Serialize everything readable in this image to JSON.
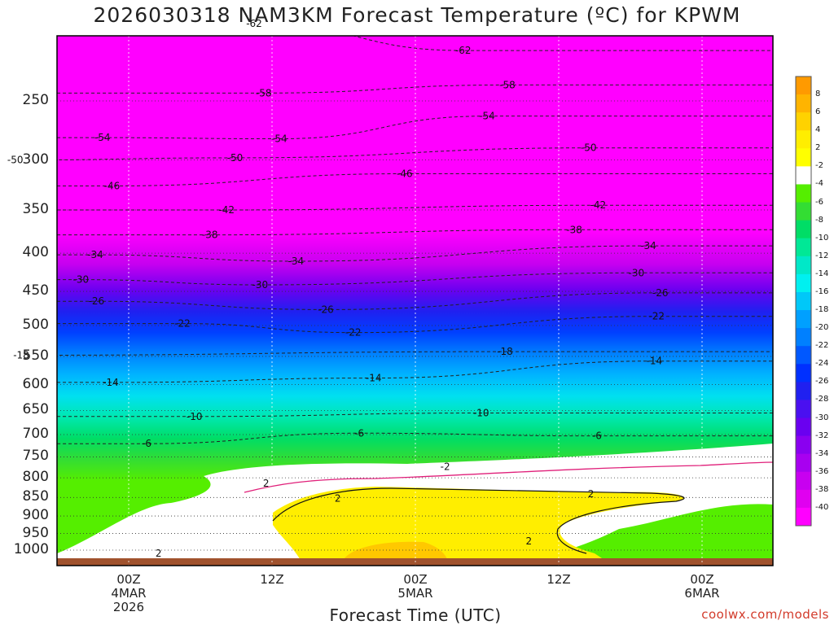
{
  "title": "2026030318 NAM3KM Forecast Temperature (ºC) for KPWM",
  "x_axis_title": "Forecast Time (UTC)",
  "credit": "coolwx.com/models",
  "chart_data": {
    "type": "heatmap",
    "title": "2026030318 NAM3KM Forecast Temperature (ºC) for KPWM",
    "xlabel": "Forecast Time (UTC)",
    "ylabel": "",
    "y_scale": "log-pressure, inverted",
    "y_ticks": [
      "250",
      "300",
      "350",
      "400",
      "450",
      "500",
      "550",
      "600",
      "650",
      "700",
      "750",
      "800",
      "850",
      "900",
      "950",
      "1000"
    ],
    "x_ticks": [
      {
        "label": "00Z",
        "sub1": "4MAR",
        "sub2": "2026"
      },
      {
        "label": "12Z",
        "sub1": "",
        "sub2": ""
      },
      {
        "label": "00Z",
        "sub1": "5MAR",
        "sub2": ""
      },
      {
        "label": "12Z",
        "sub1": "",
        "sub2": ""
      },
      {
        "label": "00Z",
        "sub1": "6MAR",
        "sub2": ""
      }
    ],
    "colorbar_labels": [
      "8",
      "6",
      "4",
      "2",
      "-2",
      "-4",
      "-6",
      "-8",
      "-10",
      "-12",
      "-14",
      "-16",
      "-18",
      "-20",
      "-22",
      "-24",
      "-26",
      "-28",
      "-30",
      "-32",
      "-34",
      "-36",
      "-38",
      "-40"
    ],
    "colorbar_colors": [
      "#ff9a00",
      "#ffb400",
      "#ffd200",
      "#ffee00",
      "#ffff00",
      "#ffffff",
      "#55ee00",
      "#33dd33",
      "#00dd66",
      "#00e896",
      "#00e8c8",
      "#00f0f0",
      "#00c8f8",
      "#00a0ff",
      "#0080ff",
      "#0058ff",
      "#0030ff",
      "#2020f0",
      "#4a10f0",
      "#6a00f0",
      "#8a00f0",
      "#a800f0",
      "#c800f0",
      "#e000f0",
      "#ff00ff"
    ],
    "contour_labels": [
      {
        "text": "-62",
        "t": 10.5,
        "p": 197
      },
      {
        "text": "-62",
        "t": 28,
        "p": 214
      },
      {
        "text": "-58",
        "t": 11.3,
        "p": 244
      },
      {
        "text": "-58",
        "t": 31.7,
        "p": 238
      },
      {
        "text": "-54",
        "t": -2.2,
        "p": 280
      },
      {
        "text": "-54",
        "t": 12.6,
        "p": 281
      },
      {
        "text": "-54",
        "t": 30,
        "p": 262
      },
      {
        "text": "-50",
        "t": -9.5,
        "p": 300
      },
      {
        "text": "-50",
        "t": 8.9,
        "p": 298
      },
      {
        "text": "-50",
        "t": 38.5,
        "p": 289
      },
      {
        "text": "-46",
        "t": -1.4,
        "p": 325
      },
      {
        "text": "-46",
        "t": 23.1,
        "p": 313
      },
      {
        "text": "-42",
        "t": 8.2,
        "p": 350
      },
      {
        "text": "-42",
        "t": 39.3,
        "p": 345
      },
      {
        "text": "-38",
        "t": 6.8,
        "p": 378
      },
      {
        "text": "-38",
        "t": 37.3,
        "p": 372
      },
      {
        "text": "-34",
        "t": -2.8,
        "p": 402
      },
      {
        "text": "-34",
        "t": 14,
        "p": 410
      },
      {
        "text": "-34",
        "t": 43.5,
        "p": 391
      },
      {
        "text": "-30",
        "t": -4,
        "p": 434
      },
      {
        "text": "-30",
        "t": 11,
        "p": 441
      },
      {
        "text": "-30",
        "t": 42.5,
        "p": 425
      },
      {
        "text": "-26",
        "t": -2.7,
        "p": 464
      },
      {
        "text": "-26",
        "t": 16.5,
        "p": 476
      },
      {
        "text": "-26",
        "t": 44.5,
        "p": 452
      },
      {
        "text": "-22",
        "t": 4.5,
        "p": 497
      },
      {
        "text": "-22",
        "t": 18.8,
        "p": 511
      },
      {
        "text": "-22",
        "t": 44.2,
        "p": 486
      },
      {
        "text": "-18",
        "t": -9,
        "p": 548
      },
      {
        "text": "-18",
        "t": 31.5,
        "p": 542
      },
      {
        "text": "-14",
        "t": -1.5,
        "p": 596
      },
      {
        "text": "-14",
        "t": 20.5,
        "p": 588
      },
      {
        "text": "-14",
        "t": 44,
        "p": 558
      },
      {
        "text": "-10",
        "t": 5.5,
        "p": 662
      },
      {
        "text": "-10",
        "t": 29.5,
        "p": 655
      },
      {
        "text": "-6",
        "t": 1.5,
        "p": 720
      },
      {
        "text": "-6",
        "t": 19.3,
        "p": 697
      },
      {
        "text": "-6",
        "t": 39.2,
        "p": 703
      },
      {
        "text": "2",
        "t": 11.5,
        "p": 814
      },
      {
        "text": "2",
        "t": 17.5,
        "p": 853
      },
      {
        "text": "-2",
        "t": 26.5,
        "p": 773
      },
      {
        "text": "2",
        "t": 38.7,
        "p": 841
      },
      {
        "text": "2",
        "t": 33.5,
        "p": 973
      },
      {
        "text": "2",
        "t": 2.5,
        "p": 1010
      }
    ]
  }
}
